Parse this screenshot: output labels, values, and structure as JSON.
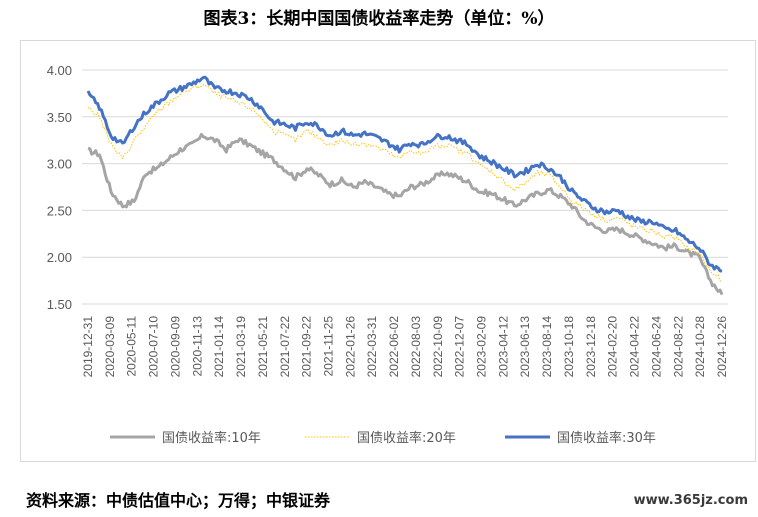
{
  "title": "图表3：长期中国国债收益率走势（单位：%）",
  "source": "资料来源：中债估值中心；万得；中银证券",
  "watermark": "www.365jz.com",
  "chart_data": {
    "type": "line",
    "ylim": [
      1.5,
      4.0
    ],
    "yticks": [
      "4.00",
      "3.50",
      "3.00",
      "2.50",
      "2.00",
      "1.50"
    ],
    "x_labels": [
      "2019-12-31",
      "2020-03-09",
      "2020-05-11",
      "2020-07-10",
      "2020-09-09",
      "2020-11-13",
      "2021-01-14",
      "2021-03-19",
      "2021-05-21",
      "2021-07-22",
      "2021-09-22",
      "2021-11-25",
      "2022-01-26",
      "2022-03-31",
      "2022-06-02",
      "2022-08-03",
      "2022-10-09",
      "2022-12-07",
      "2023-02-09",
      "2023-04-12",
      "2023-06-13",
      "2023-08-14",
      "2023-10-18",
      "2023-12-18",
      "2024-02-20",
      "2024-04-22",
      "2024-06-24",
      "2024-08-22",
      "2024-10-28",
      "2024-12-26"
    ],
    "grid": true,
    "legend_position": "bottom",
    "series": [
      {
        "name": "国债收益率:10年",
        "color": "#a5a5a5",
        "style": "solid",
        "width": 3,
        "values": [
          3.14,
          3.1,
          2.7,
          2.55,
          2.6,
          2.9,
          2.95,
          3.05,
          3.15,
          3.2,
          3.3,
          3.25,
          3.15,
          3.26,
          3.2,
          3.12,
          3.05,
          2.95,
          2.85,
          2.95,
          2.88,
          2.78,
          2.82,
          2.75,
          2.8,
          2.75,
          2.68,
          2.65,
          2.75,
          2.78,
          2.85,
          2.9,
          2.86,
          2.8,
          2.7,
          2.68,
          2.62,
          2.55,
          2.62,
          2.68,
          2.72,
          2.65,
          2.55,
          2.4,
          2.32,
          2.28,
          2.3,
          2.25,
          2.2,
          2.15,
          2.1,
          2.12,
          2.05,
          2.0,
          1.75,
          1.6
        ]
      },
      {
        "name": "国债收益率:20年",
        "color": "#ffc000",
        "style": "dotted",
        "width": 1,
        "values": [
          3.6,
          3.5,
          3.2,
          3.05,
          3.25,
          3.4,
          3.55,
          3.65,
          3.75,
          3.8,
          3.85,
          3.75,
          3.7,
          3.65,
          3.6,
          3.5,
          3.35,
          3.3,
          3.25,
          3.35,
          3.28,
          3.2,
          3.25,
          3.2,
          3.22,
          3.18,
          3.12,
          3.05,
          3.15,
          3.1,
          3.18,
          3.2,
          3.15,
          3.1,
          2.98,
          2.92,
          2.82,
          2.72,
          2.8,
          2.9,
          2.88,
          2.75,
          2.6,
          2.52,
          2.45,
          2.4,
          2.42,
          2.35,
          2.3,
          2.28,
          2.22,
          2.2,
          2.1,
          2.05,
          1.85,
          1.75
        ]
      },
      {
        "name": "国债收益率:30年",
        "color": "#4472c4",
        "style": "solid",
        "width": 3,
        "values": [
          3.75,
          3.6,
          3.3,
          3.2,
          3.4,
          3.55,
          3.65,
          3.75,
          3.8,
          3.85,
          3.92,
          3.8,
          3.78,
          3.75,
          3.7,
          3.6,
          3.45,
          3.42,
          3.38,
          3.45,
          3.4,
          3.3,
          3.35,
          3.3,
          3.32,
          3.28,
          3.22,
          3.15,
          3.22,
          3.2,
          3.28,
          3.3,
          3.25,
          3.2,
          3.08,
          3.02,
          2.95,
          2.88,
          2.92,
          3.0,
          2.95,
          2.85,
          2.7,
          2.6,
          2.52,
          2.48,
          2.5,
          2.42,
          2.38,
          2.38,
          2.3,
          2.28,
          2.18,
          2.1,
          1.92,
          1.85
        ]
      }
    ]
  }
}
